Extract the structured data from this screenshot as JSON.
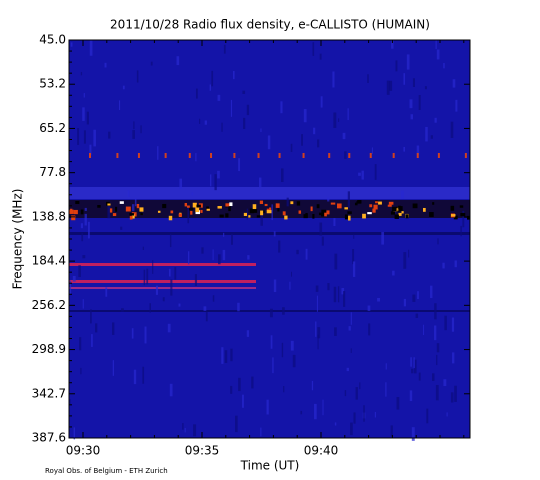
{
  "chart_data": {
    "type": "spectrogram",
    "title": "2011/10/28  Radio flux density, e-CALLISTO (HUMAIN)",
    "x_label": "Time (UT)",
    "y_label": "Frequency (MHz)",
    "xticks": [
      "09:30",
      "09:35",
      "09:40"
    ],
    "yticks": [
      {
        "value": 45,
        "label": "45.0"
      },
      53.2,
      65.2,
      77.8,
      138.8,
      184.4,
      256.2,
      298.9,
      342.7,
      387.6
    ],
    "footer": "Royal Obs. of Belgium - ETH Zurich"
  }
}
